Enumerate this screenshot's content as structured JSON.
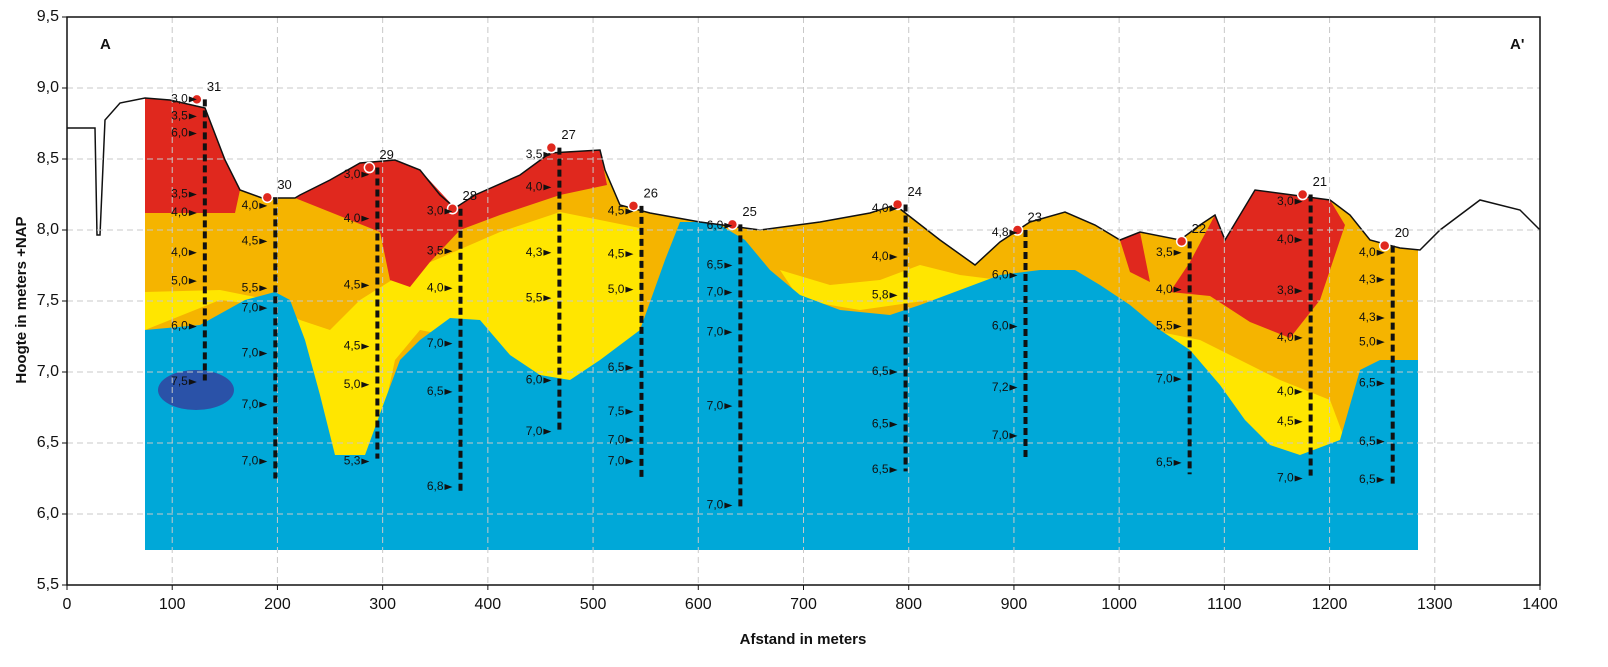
{
  "chart_data": {
    "type": "cross-section",
    "x_label": "Afstand in meters",
    "y_label": "Hoogte in meters +NAP",
    "annotations": [
      "A",
      "A'"
    ],
    "xlim": [
      0,
      1400
    ],
    "ylim": [
      5.5,
      9.5
    ],
    "xticks": [
      0,
      100,
      200,
      300,
      400,
      500,
      600,
      700,
      800,
      900,
      1000,
      1100,
      1200,
      1300,
      1400
    ],
    "yticks": [
      {
        "value": 5.5,
        "label": "5,5"
      },
      {
        "value": 6.0,
        "label": "6,0"
      },
      {
        "value": 6.5,
        "label": "6,5"
      },
      {
        "value": 7.0,
        "label": "7,0"
      },
      {
        "value": 7.5,
        "label": "7,5"
      },
      {
        "value": 8.0,
        "label": "8,0"
      },
      {
        "value": 8.5,
        "label": "8,5"
      },
      {
        "value": 9.0,
        "label": "9,0"
      },
      {
        "value": 9.5,
        "label": "9,5"
      }
    ],
    "grid": true,
    "boreholes": [
      {
        "name": "31",
        "x": 131,
        "top": 8.92,
        "bottom": 6.94,
        "readings": [
          {
            "h": 8.92,
            "value": 3.0,
            "label": "3,0"
          },
          {
            "h": 8.8,
            "value": 3.5,
            "label": "3,5"
          },
          {
            "h": 8.68,
            "value": 6.0,
            "label": "6,0"
          },
          {
            "h": 8.25,
            "value": 3.5,
            "label": "3,5"
          },
          {
            "h": 8.12,
            "value": 4.0,
            "label": "4,0"
          },
          {
            "h": 7.84,
            "value": 4.0,
            "label": "4,0"
          },
          {
            "h": 7.64,
            "value": 5.0,
            "label": "5,0"
          },
          {
            "h": 7.32,
            "value": 6.0,
            "label": "6,0"
          },
          {
            "h": 6.93,
            "value": 7.5,
            "label": "7,5"
          }
        ]
      },
      {
        "name": "30",
        "x": 198,
        "top": 8.23,
        "bottom": 6.25,
        "readings": [
          {
            "h": 8.17,
            "value": 4.0,
            "label": "4,0"
          },
          {
            "h": 7.92,
            "value": 4.5,
            "label": "4,5"
          },
          {
            "h": 7.59,
            "value": 5.5,
            "label": "5,5"
          },
          {
            "h": 7.45,
            "value": 7.0,
            "label": "7,0"
          },
          {
            "h": 7.13,
            "value": 7.0,
            "label": "7,0"
          },
          {
            "h": 6.77,
            "value": 7.0,
            "label": "7,0"
          },
          {
            "h": 6.37,
            "value": 7.0,
            "label": "7,0"
          }
        ]
      },
      {
        "name": "29",
        "x": 295,
        "top": 8.44,
        "bottom": 6.39,
        "readings": [
          {
            "h": 8.39,
            "value": 3.0,
            "label": "3,0"
          },
          {
            "h": 8.08,
            "value": 4.0,
            "label": "4,0"
          },
          {
            "h": 7.61,
            "value": 4.5,
            "label": "4,5"
          },
          {
            "h": 7.18,
            "value": 4.5,
            "label": "4,5"
          },
          {
            "h": 6.91,
            "value": 5.0,
            "label": "5,0"
          },
          {
            "h": 6.37,
            "value": 5.3,
            "label": "5,3"
          }
        ]
      },
      {
        "name": "28",
        "x": 374,
        "top": 8.15,
        "bottom": 6.15,
        "readings": [
          {
            "h": 8.13,
            "value": 3.0,
            "label": "3,0"
          },
          {
            "h": 7.85,
            "value": 3.5,
            "label": "3,5"
          },
          {
            "h": 7.59,
            "value": 4.0,
            "label": "4,0"
          },
          {
            "h": 7.2,
            "value": 7.0,
            "label": "7,0"
          },
          {
            "h": 6.86,
            "value": 6.5,
            "label": "6,5"
          },
          {
            "h": 6.19,
            "value": 6.8,
            "label": "6,8"
          }
        ]
      },
      {
        "name": "27",
        "x": 468,
        "top": 8.58,
        "bottom": 6.58,
        "readings": [
          {
            "h": 8.53,
            "value": 3.5,
            "label": "3,5"
          },
          {
            "h": 8.3,
            "value": 4.0,
            "label": "4,0"
          },
          {
            "h": 7.84,
            "value": 4.3,
            "label": "4,3"
          },
          {
            "h": 7.52,
            "value": 5.5,
            "label": "5,5"
          },
          {
            "h": 6.94,
            "value": 6.0,
            "label": "6,0"
          },
          {
            "h": 6.58,
            "value": 7.0,
            "label": "7,0"
          }
        ]
      },
      {
        "name": "26",
        "x": 546,
        "top": 8.17,
        "bottom": 6.25,
        "readings": [
          {
            "h": 8.13,
            "value": 4.5,
            "label": "4,5"
          },
          {
            "h": 7.83,
            "value": 4.5,
            "label": "4,5"
          },
          {
            "h": 7.58,
            "value": 5.0,
            "label": "5,0"
          },
          {
            "h": 7.03,
            "value": 6.5,
            "label": "6,5"
          },
          {
            "h": 6.72,
            "value": 7.5,
            "label": "7,5"
          },
          {
            "h": 6.52,
            "value": 7.0,
            "label": "7,0"
          },
          {
            "h": 6.37,
            "value": 7.0,
            "label": "7,0"
          }
        ]
      },
      {
        "name": "25",
        "x": 640,
        "top": 8.04,
        "bottom": 6.04,
        "readings": [
          {
            "h": 8.03,
            "value": 6.0,
            "label": "6,0"
          },
          {
            "h": 7.75,
            "value": 6.5,
            "label": "6,5"
          },
          {
            "h": 7.56,
            "value": 7.0,
            "label": "7,0"
          },
          {
            "h": 7.28,
            "value": 7.0,
            "label": "7,0"
          },
          {
            "h": 6.76,
            "value": 7.0,
            "label": "7,0"
          },
          {
            "h": 6.06,
            "value": 7.0,
            "label": "7,0"
          }
        ]
      },
      {
        "name": "24",
        "x": 797,
        "top": 8.18,
        "bottom": 6.3,
        "readings": [
          {
            "h": 8.15,
            "value": 4.0,
            "label": "4,0"
          },
          {
            "h": 7.81,
            "value": 4.0,
            "label": "4,0"
          },
          {
            "h": 7.54,
            "value": 5.8,
            "label": "5,8"
          },
          {
            "h": 7.0,
            "value": 6.5,
            "label": "6,5"
          },
          {
            "h": 6.63,
            "value": 6.5,
            "label": "6,5"
          },
          {
            "h": 6.31,
            "value": 6.5,
            "label": "6,5"
          }
        ]
      },
      {
        "name": "23",
        "x": 911,
        "top": 8.0,
        "bottom": 6.38,
        "readings": [
          {
            "h": 7.98,
            "value": 4.8,
            "label": "4,8"
          },
          {
            "h": 7.68,
            "value": 6.0,
            "label": "6,0"
          },
          {
            "h": 7.32,
            "value": 6.0,
            "label": "6,0"
          },
          {
            "h": 6.89,
            "value": 7.2,
            "label": "7,2"
          },
          {
            "h": 6.55,
            "value": 7.0,
            "label": "7,0"
          }
        ]
      },
      {
        "name": "22",
        "x": 1067,
        "top": 7.92,
        "bottom": 6.28,
        "readings": [
          {
            "h": 7.84,
            "value": 3.5,
            "label": "3,5"
          },
          {
            "h": 7.58,
            "value": 4.0,
            "label": "4,0"
          },
          {
            "h": 7.32,
            "value": 5.5,
            "label": "5,5"
          },
          {
            "h": 6.95,
            "value": 7.0,
            "label": "7,0"
          },
          {
            "h": 6.36,
            "value": 6.5,
            "label": "6,5"
          }
        ]
      },
      {
        "name": "21",
        "x": 1182,
        "top": 8.25,
        "bottom": 6.27,
        "readings": [
          {
            "h": 8.2,
            "value": 3.0,
            "label": "3,0"
          },
          {
            "h": 7.93,
            "value": 4.0,
            "label": "4,0"
          },
          {
            "h": 7.57,
            "value": 3.8,
            "label": "3,8"
          },
          {
            "h": 7.24,
            "value": 4.0,
            "label": "4,0"
          },
          {
            "h": 6.86,
            "value": 4.0,
            "label": "4,0"
          },
          {
            "h": 6.65,
            "value": 4.5,
            "label": "4,5"
          },
          {
            "h": 6.25,
            "value": 7.0,
            "label": "7,0"
          }
        ]
      },
      {
        "name": "20",
        "x": 1260,
        "top": 7.89,
        "bottom": 6.21,
        "readings": [
          {
            "h": 7.84,
            "value": 4.0,
            "label": "4,0"
          },
          {
            "h": 7.65,
            "value": 4.3,
            "label": "4,3"
          },
          {
            "h": 7.38,
            "value": 4.3,
            "label": "4,3"
          },
          {
            "h": 7.21,
            "value": 5.0,
            "label": "5,0"
          },
          {
            "h": 6.92,
            "value": 6.5,
            "label": "6,5"
          },
          {
            "h": 6.51,
            "value": 6.5,
            "label": "6,5"
          },
          {
            "h": 6.24,
            "value": 6.5,
            "label": "6,5"
          }
        ]
      }
    ]
  }
}
